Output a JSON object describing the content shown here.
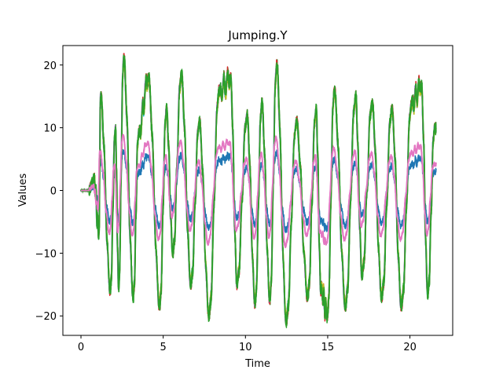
{
  "chart_data": {
    "type": "line",
    "title": "Jumping.Y",
    "xlabel": "Time",
    "ylabel": "Values",
    "xlim": [
      -1.1,
      22.6
    ],
    "ylim": [
      -23.1,
      23.1
    ],
    "xticks": [
      0,
      5,
      10,
      15,
      20
    ],
    "xtick_labels": [
      "0",
      "5",
      "10",
      "15",
      "20"
    ],
    "yticks": [
      -20,
      -10,
      0,
      10,
      20
    ],
    "ytick_labels": [
      "−20",
      "−10",
      "0",
      "10",
      "20"
    ],
    "grid": false,
    "legend": "none",
    "peaks": [
      {
        "t": 0.8,
        "v": 2
      },
      {
        "t": 1.1,
        "v": -7
      },
      {
        "t": 1.2,
        "v": 15
      },
      {
        "t": 1.8,
        "v": -16
      },
      {
        "t": 2.1,
        "v": 10
      },
      {
        "t": 2.3,
        "v": -15.5
      },
      {
        "t": 2.6,
        "v": 21
      },
      {
        "t": 3.2,
        "v": -17
      },
      {
        "t": 3.5,
        "v": 9
      },
      {
        "t": 4.1,
        "v": 18
      },
      {
        "t": 4.8,
        "v": -18.5
      },
      {
        "t": 5.2,
        "v": 13
      },
      {
        "t": 5.6,
        "v": -10
      },
      {
        "t": 6.1,
        "v": 18.5
      },
      {
        "t": 6.7,
        "v": -15
      },
      {
        "t": 7.2,
        "v": 11
      },
      {
        "t": 7.8,
        "v": -20
      },
      {
        "t": 8.4,
        "v": 16
      },
      {
        "t": 9.1,
        "v": 18
      },
      {
        "t": 9.5,
        "v": -15
      },
      {
        "t": 10.1,
        "v": 12
      },
      {
        "t": 10.6,
        "v": -18
      },
      {
        "t": 11.0,
        "v": 14
      },
      {
        "t": 11.5,
        "v": -17.5
      },
      {
        "t": 11.9,
        "v": 20
      },
      {
        "t": 12.5,
        "v": -21
      },
      {
        "t": 13.1,
        "v": 11
      },
      {
        "t": 13.8,
        "v": -17
      },
      {
        "t": 14.3,
        "v": 13
      },
      {
        "t": 14.6,
        "v": -16
      },
      {
        "t": 15.0,
        "v": -20
      },
      {
        "t": 15.4,
        "v": 16
      },
      {
        "t": 16.1,
        "v": -18.5
      },
      {
        "t": 16.7,
        "v": 15
      },
      {
        "t": 17.1,
        "v": -13.5
      },
      {
        "t": 17.7,
        "v": 14
      },
      {
        "t": 18.3,
        "v": -17
      },
      {
        "t": 18.9,
        "v": 13
      },
      {
        "t": 19.5,
        "v": -18.5
      },
      {
        "t": 20.1,
        "v": 14
      },
      {
        "t": 20.7,
        "v": 16.8
      },
      {
        "t": 21.1,
        "v": -16.5
      },
      {
        "t": 21.5,
        "v": 10
      }
    ],
    "series": [
      {
        "color": "#2ca02c",
        "scale": 1.0,
        "phase": 0.0,
        "noise": 0.9
      },
      {
        "color": "#ff7f0e",
        "scale": 0.98,
        "phase": 0.015,
        "noise": 0.8
      },
      {
        "color": "#1f77b4",
        "scale": 0.3,
        "phase": 0.03,
        "noise": 0.6
      },
      {
        "color": "#d62728",
        "scale": 1.01,
        "phase": 0.007,
        "noise": 0.7
      },
      {
        "color": "#17becf",
        "scale": 0.97,
        "phase": 0.02,
        "noise": 0.7
      },
      {
        "color": "#8c564b",
        "scale": 0.96,
        "phase": 0.01,
        "noise": 0.6
      },
      {
        "color": "#9467bd",
        "scale": 0.99,
        "phase": 0.025,
        "noise": 0.6
      },
      {
        "color": "#bcbd22",
        "scale": 0.95,
        "phase": 0.005,
        "noise": 0.6
      },
      {
        "color": "#2ca02c",
        "scale": 0.985,
        "phase": 0.012,
        "noise": 1.0
      },
      {
        "color": "#e377c2",
        "scale": 0.42,
        "phase": 0.06,
        "noise": 0.3
      }
    ]
  }
}
